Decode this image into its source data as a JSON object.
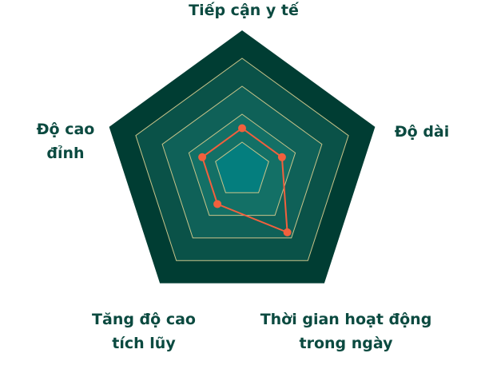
{
  "chart_data": {
    "type": "radar",
    "axes": [
      {
        "lines": [
          "Tiếp cận y tế"
        ]
      },
      {
        "lines": [
          "Độ dài"
        ]
      },
      {
        "lines": [
          "Thời gian hoạt động",
          "trong ngày"
        ]
      },
      {
        "lines": [
          "Tăng độ cao",
          "tích lũy"
        ]
      },
      {
        "lines": [
          "Độ cao",
          "đỉnh"
        ]
      }
    ],
    "values": [
      0.3,
      0.3,
      0.55,
      0.3,
      0.3
    ],
    "levels": 5,
    "range": [
      0,
      1
    ],
    "grid": true,
    "legend": "none"
  },
  "colors": {
    "ring_outer": "#003d33",
    "ring_2": "#0a5248",
    "ring_3": "#0f6158",
    "ring_4": "#137066",
    "ring_inner": "#047e7e",
    "grid_line": "#c9c48a",
    "series": "#f2603d",
    "label": "#0b4a40"
  }
}
